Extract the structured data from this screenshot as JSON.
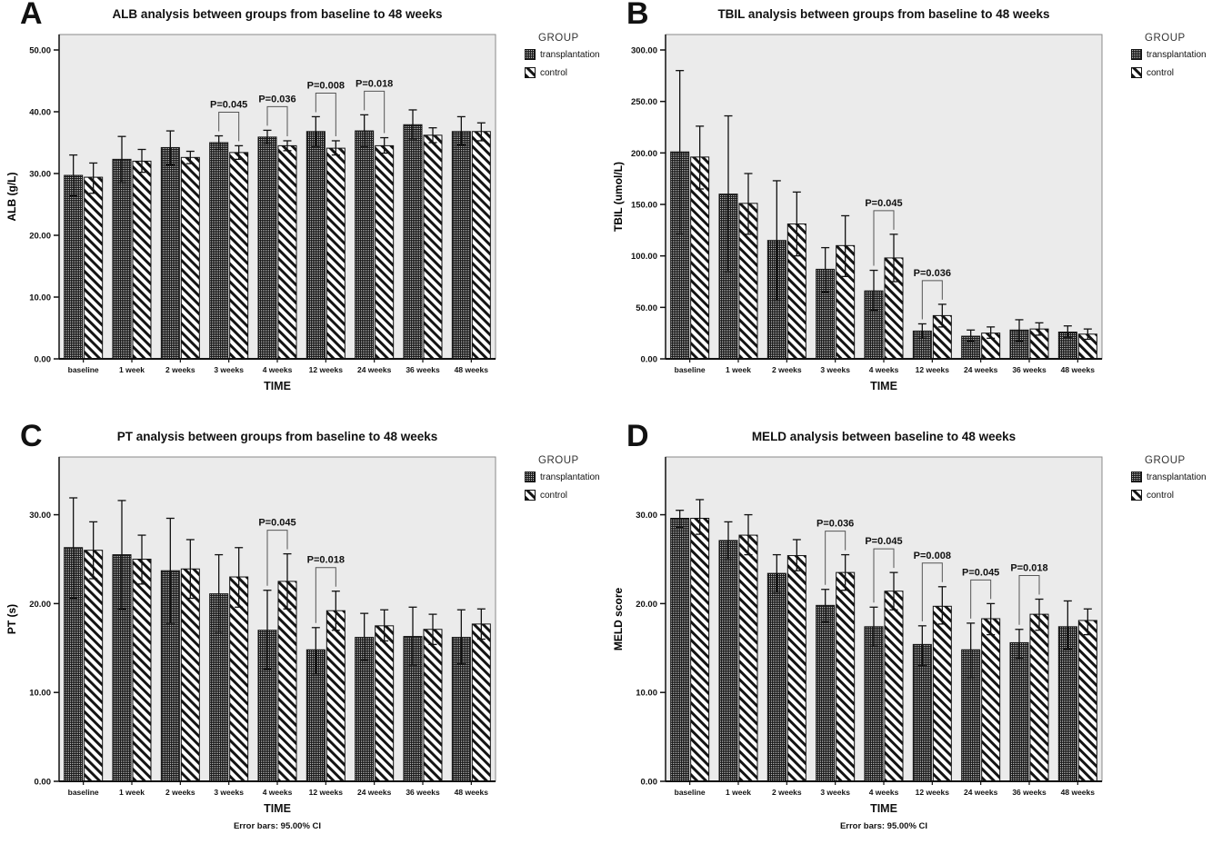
{
  "legend": {
    "title": "GROUP",
    "entries": [
      {
        "label": "transplantation",
        "pattern": "crosshatch"
      },
      {
        "label": "control",
        "pattern": "diagonal"
      }
    ]
  },
  "colors": {
    "plot_background": "#ebebeb",
    "axis": "#111111",
    "bracket": "#555555",
    "pattern_dark": "#1b1b1b",
    "pattern_light": "#c9c9c9"
  },
  "chart_data": [
    {
      "type": "bar",
      "panel": "A",
      "title": "ALB analysis between groups from baseline to 48 weeks",
      "xlabel": "TIME",
      "ylabel": "ALB (g/L)",
      "ylim": [
        0,
        52.5
      ],
      "yticks": [
        0,
        10,
        20,
        30,
        40,
        50
      ],
      "grid": false,
      "legend_position": "right-top",
      "error_bars": "95.00% CI",
      "categories": [
        "baseline",
        "1 week",
        "2 weeks",
        "3 weeks",
        "4 weeks",
        "12 weeks",
        "24 weeks",
        "36 weeks",
        "48 weeks"
      ],
      "series": [
        {
          "name": "transplantation",
          "pattern": "crosshatch",
          "values": [
            29.7,
            32.3,
            34.2,
            35.0,
            35.9,
            36.8,
            36.9,
            37.9,
            36.8
          ],
          "ci": [
            [
              26.4,
              33.0
            ],
            [
              28.6,
              36.0
            ],
            [
              31.4,
              36.9
            ],
            [
              33.9,
              36.1
            ],
            [
              34.8,
              37.0
            ],
            [
              34.4,
              39.2
            ],
            [
              34.4,
              39.5
            ],
            [
              35.6,
              40.3
            ],
            [
              34.6,
              39.2
            ]
          ]
        },
        {
          "name": "control",
          "pattern": "diagonal",
          "values": [
            29.4,
            32.0,
            32.6,
            33.4,
            34.5,
            34.1,
            34.5,
            36.2,
            36.8
          ],
          "ci": [
            [
              26.8,
              31.7
            ],
            [
              30.2,
              33.9
            ],
            [
              31.6,
              33.6
            ],
            [
              32.3,
              34.5
            ],
            [
              33.7,
              35.3
            ],
            [
              33.0,
              35.3
            ],
            [
              33.3,
              35.8
            ],
            [
              35.0,
              37.4
            ],
            [
              35.3,
              38.2
            ]
          ]
        }
      ],
      "p_annotations": [
        {
          "category": "3 weeks",
          "label": "P=0.045"
        },
        {
          "category": "4 weeks",
          "label": "P=0.036"
        },
        {
          "category": "12 weeks",
          "label": "P=0.008"
        },
        {
          "category": "24 weeks",
          "label": "P=0.018"
        }
      ]
    },
    {
      "type": "bar",
      "panel": "B",
      "title": "TBIL analysis between groups from baseline to 48 weeks",
      "xlabel": "TIME",
      "ylabel": "TBIL (umol/L)",
      "ylim": [
        0,
        315
      ],
      "yticks": [
        0,
        50,
        100,
        150,
        200,
        250,
        300
      ],
      "grid": false,
      "legend_position": "right-top",
      "error_bars": "95.00% CI",
      "categories": [
        "baseline",
        "1 week",
        "2 weeks",
        "3 weeks",
        "4 weeks",
        "12 weeks",
        "24 weeks",
        "36 weeks",
        "48 weeks"
      ],
      "series": [
        {
          "name": "transplantation",
          "pattern": "crosshatch",
          "values": [
            201,
            160,
            115,
            87,
            66,
            27,
            22,
            28,
            26
          ],
          "ci": [
            [
              122,
              280
            ],
            [
              85,
              236
            ],
            [
              57,
              173
            ],
            [
              65,
              108
            ],
            [
              47,
              86
            ],
            [
              20,
              34
            ],
            [
              17,
              28
            ],
            [
              17,
              38
            ],
            [
              21,
              32
            ]
          ]
        },
        {
          "name": "control",
          "pattern": "diagonal",
          "values": [
            196,
            151,
            131,
            110,
            98,
            42,
            25,
            29,
            24
          ],
          "ci": [
            [
              165,
              226
            ],
            [
              121,
              180
            ],
            [
              100,
              162
            ],
            [
              80,
              139
            ],
            [
              75,
              121
            ],
            [
              31,
              53
            ],
            [
              20,
              31
            ],
            [
              23,
              35
            ],
            [
              19,
              29
            ]
          ]
        }
      ],
      "p_annotations": [
        {
          "category": "4 weeks",
          "label": "P=0.045"
        },
        {
          "category": "12 weeks",
          "label": "P=0.036"
        }
      ]
    },
    {
      "type": "bar",
      "panel": "C",
      "title": "PT analysis between groups from baseline to 48 weeks",
      "xlabel": "TIME",
      "ylabel": "PT (s)",
      "ylim": [
        0,
        36.5
      ],
      "yticks": [
        0,
        10,
        20,
        30
      ],
      "grid": false,
      "legend_position": "right-top",
      "error_bars": "95.00% CI",
      "footer": "Error bars: 95.00% CI",
      "categories": [
        "baseline",
        "1 week",
        "2 weeks",
        "3 weeks",
        "4 weeks",
        "12 weeks",
        "24 weeks",
        "36 weeks",
        "48 weeks"
      ],
      "series": [
        {
          "name": "transplantation",
          "pattern": "crosshatch",
          "values": [
            26.3,
            25.5,
            23.7,
            21.1,
            17.0,
            14.8,
            16.2,
            16.3,
            16.2
          ],
          "ci": [
            [
              20.6,
              31.9
            ],
            [
              19.4,
              31.6
            ],
            [
              17.8,
              29.6
            ],
            [
              16.8,
              25.5
            ],
            [
              12.6,
              21.5
            ],
            [
              12.1,
              17.3
            ],
            [
              13.6,
              18.9
            ],
            [
              13.1,
              19.6
            ],
            [
              13.2,
              19.3
            ]
          ]
        },
        {
          "name": "control",
          "pattern": "diagonal",
          "values": [
            26.0,
            25.0,
            23.9,
            23.0,
            22.5,
            19.2,
            17.5,
            17.1,
            17.7
          ],
          "ci": [
            [
              22.8,
              29.2
            ],
            [
              22.2,
              27.7
            ],
            [
              20.6,
              27.2
            ],
            [
              19.6,
              26.3
            ],
            [
              19.4,
              25.6
            ],
            [
              17.0,
              21.4
            ],
            [
              15.8,
              19.3
            ],
            [
              15.4,
              18.8
            ],
            [
              16.0,
              19.4
            ]
          ]
        }
      ],
      "p_annotations": [
        {
          "category": "4 weeks",
          "label": "P=0.045"
        },
        {
          "category": "12 weeks",
          "label": "P=0.018"
        }
      ]
    },
    {
      "type": "bar",
      "panel": "D",
      "title": "MELD analysis between baseline to 48 weeks",
      "xlabel": "TIME",
      "ylabel": "MELD score",
      "ylim": [
        0,
        36.5
      ],
      "yticks": [
        0,
        10,
        20,
        30
      ],
      "grid": false,
      "legend_position": "right-top",
      "error_bars": "95.00% CI",
      "footer": "Error bars: 95.00% CI",
      "categories": [
        "baseline",
        "1 week",
        "2 weeks",
        "3 weeks",
        "4 weeks",
        "12 weeks",
        "24 weeks",
        "36 weeks",
        "48 weeks"
      ],
      "series": [
        {
          "name": "transplantation",
          "pattern": "crosshatch",
          "values": [
            29.6,
            27.1,
            23.4,
            19.8,
            17.4,
            15.4,
            14.8,
            15.6,
            17.4
          ],
          "ci": [
            [
              28.6,
              30.5
            ],
            [
              25.0,
              29.2
            ],
            [
              21.3,
              25.5
            ],
            [
              17.9,
              21.6
            ],
            [
              15.2,
              19.6
            ],
            [
              13.0,
              17.5
            ],
            [
              11.7,
              17.8
            ],
            [
              13.8,
              17.1
            ],
            [
              14.9,
              20.3
            ]
          ]
        },
        {
          "name": "control",
          "pattern": "diagonal",
          "values": [
            29.6,
            27.7,
            25.4,
            23.5,
            21.4,
            19.7,
            18.3,
            18.8,
            18.1
          ],
          "ci": [
            [
              27.8,
              31.7
            ],
            [
              25.5,
              30.0
            ],
            [
              23.7,
              27.2
            ],
            [
              21.5,
              25.5
            ],
            [
              19.3,
              23.5
            ],
            [
              17.7,
              21.9
            ],
            [
              16.5,
              20.0
            ],
            [
              17.0,
              20.5
            ],
            [
              16.5,
              19.4
            ]
          ]
        }
      ],
      "p_annotations": [
        {
          "category": "3 weeks",
          "label": "P=0.036"
        },
        {
          "category": "4 weeks",
          "label": "P=0.045"
        },
        {
          "category": "12 weeks",
          "label": "P=0.008"
        },
        {
          "category": "24 weeks",
          "label": "P=0.045"
        },
        {
          "category": "36 weeks",
          "label": "P=0.018"
        }
      ]
    }
  ]
}
